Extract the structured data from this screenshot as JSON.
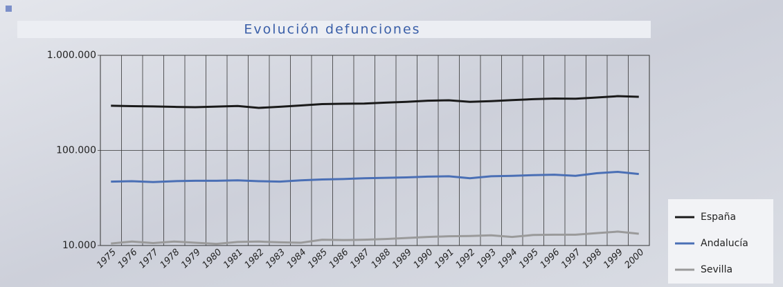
{
  "chart_data": {
    "type": "line",
    "title": "Evolución defunciones",
    "log_scale": true,
    "categories": [
      "1975",
      "1976",
      "1977",
      "1978",
      "1979",
      "1980",
      "1981",
      "1982",
      "1983",
      "1984",
      "1985",
      "1986",
      "1987",
      "1988",
      "1989",
      "1990",
      "1991",
      "1992",
      "1993",
      "1994",
      "1995",
      "1996",
      "1997",
      "1998",
      "1999",
      "2000"
    ],
    "series": [
      {
        "name": "España",
        "color": "#1a1a1a",
        "values": [
          295000,
          292000,
          290000,
          287000,
          285000,
          289000,
          293000,
          280000,
          288000,
          297000,
          307000,
          310000,
          311000,
          318000,
          324000,
          333000,
          337000,
          324000,
          330000,
          338000,
          346000,
          351000,
          350000,
          360000,
          372000,
          366000
        ]
      },
      {
        "name": "Andalucía",
        "color": "#4a6fb5",
        "values": [
          47000,
          47500,
          46500,
          47500,
          48000,
          48000,
          48500,
          47500,
          47000,
          48500,
          49500,
          50000,
          51000,
          51500,
          52000,
          53000,
          53500,
          51000,
          53500,
          54000,
          55000,
          55500,
          54000,
          57500,
          59500,
          56500
        ]
      },
      {
        "name": "Sevilla",
        "color": "#9a9a9a",
        "values": [
          10500,
          11000,
          10600,
          11000,
          10700,
          10400,
          10900,
          11000,
          10800,
          10700,
          11500,
          11400,
          11500,
          11700,
          12000,
          12300,
          12500,
          12600,
          12800,
          12300,
          12900,
          13000,
          13000,
          13500,
          14000,
          13300
        ]
      }
    ],
    "ylim": [
      10000,
      1000000
    ],
    "yticks": [
      {
        "value": 10000,
        "label": "10.000"
      },
      {
        "value": 100000,
        "label": "100.000"
      },
      {
        "value": 1000000,
        "label": "1.000.000"
      }
    ],
    "legend": "lower right"
  }
}
